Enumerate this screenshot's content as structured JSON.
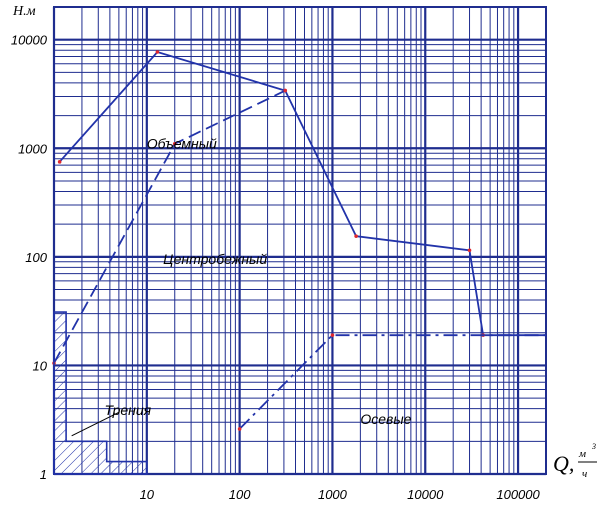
{
  "chart_data": {
    "type": "line",
    "title": "",
    "xlabel": "Q, м³/ч",
    "xlabel_parts": {
      "symbol": "Q,",
      "numerator": "м",
      "superscript": "3",
      "denominator": "ч"
    },
    "ylabel": "Н.м",
    "xscale": "log",
    "yscale": "log",
    "xlim": [
      1,
      200000
    ],
    "ylim": [
      1,
      20000
    ],
    "x_ticks": [
      "10",
      "100",
      "1000",
      "10000",
      "100000"
    ],
    "y_ticks": [
      "1",
      "10",
      "100",
      "1000",
      "10000"
    ],
    "grid": true,
    "colors": {
      "grid": "#1f2d8f",
      "series": "#2233aa",
      "marker": "#e0282e",
      "hatch": "#2233aa"
    },
    "regions": [
      {
        "label": "Объемный",
        "style": "solid",
        "points": [
          [
            1.15,
            750
          ],
          [
            13,
            7700
          ],
          [
            310,
            3400
          ],
          [
            1800,
            155
          ],
          [
            30000,
            115
          ],
          [
            42000,
            19
          ],
          [
            200000,
            19
          ]
        ]
      },
      {
        "label": "Центробежный",
        "style": "dashed",
        "points": [
          [
            1,
            10.5
          ],
          [
            20,
            1100
          ],
          [
            310,
            3400
          ]
        ]
      },
      {
        "label": "Осевые",
        "style": "dashdot",
        "points": [
          [
            100,
            2.6
          ],
          [
            1000,
            19
          ],
          [
            200000,
            19
          ]
        ]
      },
      {
        "label": "Трения",
        "style": "hatched-area",
        "points": [
          [
            1,
            1
          ],
          [
            1,
            31
          ],
          [
            1.35,
            31
          ],
          [
            1.35,
            2
          ],
          [
            3.7,
            2
          ],
          [
            3.7,
            1.3
          ],
          [
            10,
            1.3
          ],
          [
            10,
            1
          ]
        ]
      }
    ]
  }
}
